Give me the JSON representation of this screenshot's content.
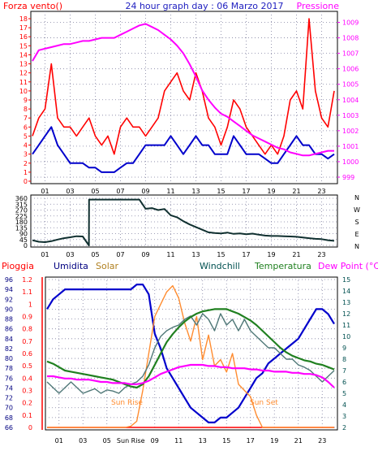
{
  "chart_data": [
    {
      "type": "line",
      "title": "24 hour graph day : 06 Marzo 2017",
      "left_label": "Forza vento()",
      "right_label": "Pressione",
      "x_ticks": [
        "01",
        "03",
        "05",
        "07",
        "09",
        "11",
        "13",
        "15",
        "17",
        "19",
        "21",
        "23"
      ],
      "x_domain": [
        0,
        24
      ],
      "y_left_ticks": [
        "0",
        "1",
        "2",
        "3",
        "4",
        "5",
        "6",
        "7",
        "8",
        "9",
        "10",
        "11",
        "12",
        "13",
        "14",
        "15",
        "16",
        "17",
        "18"
      ],
      "y_left_domain": [
        0,
        18
      ],
      "y_right_ticks": [
        "999",
        "1000",
        "1001",
        "1002",
        "1003",
        "1004",
        "1005",
        "1006",
        "1007",
        "1008",
        "1009"
      ],
      "y_right_domain": [
        999,
        1009.5
      ],
      "series": [
        {
          "color": "#ff0000",
          "axis": "left",
          "x": [
            0,
            0.5,
            1,
            1.5,
            2,
            2.5,
            3,
            3.5,
            4,
            4.5,
            5,
            5.5,
            6,
            6.5,
            7,
            7.5,
            8,
            8.5,
            9,
            9.5,
            10,
            10.5,
            11,
            11.5,
            12,
            12.5,
            13,
            13.5,
            14,
            14.5,
            15,
            15.5,
            16,
            16.5,
            17,
            17.5,
            18,
            18.5,
            19,
            19.5,
            20,
            20.5,
            21,
            21.5,
            22,
            22.5,
            23,
            23.5,
            24
          ],
          "values": [
            5,
            7,
            8,
            13,
            7,
            6,
            6,
            5,
            6,
            7,
            5,
            4,
            5,
            3,
            6,
            7,
            6,
            6,
            5,
            6,
            7,
            10,
            11,
            12,
            10,
            9,
            12,
            10,
            7,
            6,
            4,
            6,
            9,
            8,
            6,
            5,
            4,
            3,
            4,
            3,
            5,
            9,
            10,
            8,
            18,
            10,
            7,
            6,
            10
          ]
        },
        {
          "color": "#0000cc",
          "axis": "left",
          "x": [
            0,
            0.5,
            1,
            1.5,
            2,
            2.5,
            3,
            3.5,
            4,
            4.5,
            5,
            5.5,
            6,
            6.5,
            7,
            7.5,
            8,
            8.5,
            9,
            9.5,
            10,
            10.5,
            11,
            11.5,
            12,
            12.5,
            13,
            13.5,
            14,
            14.5,
            15,
            15.5,
            16,
            16.5,
            17,
            17.5,
            18,
            18.5,
            19,
            19.5,
            20,
            20.5,
            21,
            21.5,
            22,
            22.5,
            23,
            23.5,
            24
          ],
          "values": [
            3,
            4,
            5,
            6,
            4,
            3,
            2,
            2,
            2,
            1.5,
            1.5,
            1,
            1,
            1,
            1.5,
            2,
            2,
            3,
            4,
            4,
            4,
            4,
            5,
            4,
            3,
            4,
            5,
            4,
            4,
            3,
            3,
            3,
            5,
            4,
            3,
            3,
            3,
            2.5,
            2,
            2,
            3,
            4,
            5,
            4,
            4,
            3,
            3,
            2.5,
            3
          ]
        },
        {
          "color": "#ff00ff",
          "axis": "right",
          "x": [
            0,
            0.5,
            1,
            1.5,
            2,
            2.5,
            3,
            3.5,
            4,
            4.5,
            5,
            5.5,
            6,
            6.5,
            7,
            7.5,
            8,
            8.5,
            9,
            9.5,
            10,
            10.5,
            11,
            11.5,
            12,
            12.5,
            13,
            13.5,
            14,
            14.5,
            15,
            15.5,
            16,
            16.5,
            17,
            17.5,
            18,
            18.5,
            19,
            19.5,
            20,
            20.5,
            21,
            21.5,
            22,
            22.5,
            23,
            23.5,
            24
          ],
          "values": [
            1006.5,
            1007.2,
            1007.3,
            1007.4,
            1007.5,
            1007.6,
            1007.6,
            1007.7,
            1007.8,
            1007.8,
            1007.9,
            1008.0,
            1008.0,
            1008.0,
            1008.2,
            1008.4,
            1008.6,
            1008.8,
            1008.9,
            1008.7,
            1008.5,
            1008.2,
            1007.9,
            1007.5,
            1007.0,
            1006.3,
            1005.5,
            1004.6,
            1004.0,
            1003.5,
            1003.1,
            1002.9,
            1002.6,
            1002.3,
            1002.0,
            1001.7,
            1001.5,
            1001.3,
            1001.1,
            1000.9,
            1000.8,
            1000.6,
            1000.5,
            1000.4,
            1000.4,
            1000.5,
            1000.6,
            1000.7,
            1000.7
          ]
        }
      ]
    },
    {
      "type": "line",
      "direction_labels": [
        "N",
        "W",
        "S",
        "E",
        "N"
      ],
      "x_ticks": [
        "01",
        "03",
        "05",
        "07",
        "09",
        "11",
        "13",
        "15",
        "17",
        "19",
        "21",
        "23"
      ],
      "x_domain": [
        0,
        24
      ],
      "y_ticks": [
        "0",
        "45",
        "90",
        "135",
        "180",
        "225",
        "270",
        "315",
        "360"
      ],
      "y_domain": [
        0,
        360
      ],
      "series": [
        {
          "color": "#103030",
          "x": [
            0,
            0.5,
            1,
            1.5,
            2,
            2.5,
            3,
            3.5,
            4,
            4.49,
            4.5,
            5,
            5.5,
            6,
            6.5,
            7,
            7.5,
            8,
            8.5,
            9,
            9.5,
            10,
            10.5,
            11,
            11.5,
            12,
            12.5,
            13,
            13.5,
            14,
            14.5,
            15,
            15.5,
            16,
            16.5,
            17,
            17.5,
            18,
            18.5,
            19,
            19.5,
            20,
            20.5,
            21,
            21.5,
            22,
            22.5,
            23,
            23.5,
            24
          ],
          "values": [
            40,
            28,
            25,
            32,
            45,
            55,
            62,
            70,
            68,
            0,
            350,
            350,
            350,
            350,
            350,
            350,
            350,
            350,
            350,
            280,
            285,
            270,
            278,
            230,
            215,
            185,
            160,
            140,
            120,
            100,
            95,
            92,
            98,
            88,
            92,
            85,
            90,
            82,
            75,
            72,
            72,
            70,
            68,
            66,
            60,
            55,
            50,
            48,
            40,
            35
          ]
        }
      ]
    },
    {
      "type": "line",
      "header_labels": [
        "Pioggia",
        "Umidita",
        "Solar",
        "Windchill",
        "Temperatura",
        "Dew Point (°C)"
      ],
      "annotations": [
        "Sun Rise",
        "Sun Set"
      ],
      "x_ticks": [
        "01",
        "03",
        "05",
        "Sun Rise",
        "09",
        "11",
        "13",
        "15",
        "17",
        "19",
        "21",
        "23"
      ],
      "x_domain": [
        0,
        24
      ],
      "y_rain_ticks": [
        "0",
        "0.1",
        "0.2",
        "0.3",
        "0.4",
        "0.5",
        "0.6",
        "0.7",
        "0.8",
        "0.9",
        "1",
        "1.1",
        "1.2"
      ],
      "y_rain_domain": [
        0,
        1.2
      ],
      "y_humidity_ticks": [
        "66",
        "68",
        "70",
        "72",
        "74",
        "76",
        "78",
        "80",
        "82",
        "84",
        "86",
        "88",
        "90",
        "92",
        "94",
        "96"
      ],
      "y_humidity_domain": [
        66,
        96
      ],
      "y_temp_ticks": [
        "2",
        "3",
        "4",
        "5",
        "6",
        "7",
        "8",
        "9",
        "10",
        "11",
        "12",
        "13",
        "14",
        "15"
      ],
      "y_temp_domain": [
        2,
        15
      ],
      "series": [
        {
          "color": "#ff0000",
          "axis": "rain",
          "x": [
            0,
            24
          ],
          "values": [
            0,
            0
          ]
        },
        {
          "color": "#0000cc",
          "axis": "humidity",
          "x": [
            0,
            0.5,
            1,
            1.5,
            2,
            2.5,
            3,
            3.5,
            4,
            4.5,
            5,
            5.5,
            6,
            6.5,
            7,
            7.5,
            8,
            8.5,
            9,
            9.5,
            10,
            10.5,
            11,
            11.5,
            12,
            12.5,
            13,
            13.5,
            14,
            14.5,
            15,
            15.5,
            16,
            16.5,
            17,
            17.5,
            18,
            18.5,
            19,
            19.5,
            20,
            20.5,
            21,
            21.5,
            22,
            22.5,
            23,
            23.5,
            24
          ],
          "values": [
            90,
            92,
            93,
            94,
            94,
            94,
            94,
            94,
            94,
            94,
            94,
            94,
            94,
            94,
            94,
            95,
            95,
            93,
            85,
            82,
            78,
            76,
            74,
            72,
            70,
            69,
            68,
            67,
            67,
            68,
            68,
            69,
            70,
            72,
            74,
            76,
            77,
            79,
            80,
            81,
            82,
            83,
            84,
            86,
            88,
            90,
            90,
            89,
            87
          ]
        },
        {
          "color": "#ff8c30",
          "axis": "solar",
          "x": [
            0,
            5.5,
            6,
            6.5,
            7,
            7.5,
            8,
            8.5,
            9,
            9.5,
            10,
            10.5,
            11,
            11.5,
            12,
            12.5,
            13,
            13.5,
            14,
            14.5,
            15,
            15.5,
            16,
            16.5,
            17,
            17.5,
            18,
            24
          ],
          "values": [
            0,
            0,
            0,
            0,
            0.01,
            0.05,
            0.3,
            0.6,
            0.9,
            1.0,
            1.1,
            1.15,
            1.05,
            0.85,
            0.7,
            0.9,
            0.55,
            0.75,
            0.5,
            0.55,
            0.45,
            0.6,
            0.35,
            0.3,
            0.25,
            0.1,
            0,
            0
          ]
        },
        {
          "color": "#507878",
          "axis": "temp",
          "x": [
            0,
            0.5,
            1,
            1.5,
            2,
            2.5,
            3,
            3.5,
            4,
            4.5,
            5,
            5.5,
            6,
            6.5,
            7,
            7.5,
            8,
            8.5,
            9,
            9.5,
            10,
            10.5,
            11,
            11.5,
            12,
            12.5,
            13,
            13.5,
            14,
            14.5,
            15,
            15.5,
            16,
            16.5,
            17,
            17.5,
            18,
            18.5,
            19,
            19.5,
            20,
            20.5,
            21,
            21.5,
            22,
            22.5,
            23,
            23.5,
            24
          ],
          "values": [
            6,
            5.5,
            5,
            5.5,
            6,
            5.5,
            5,
            5.2,
            5.4,
            5,
            5.3,
            5.2,
            5,
            5.5,
            5.8,
            6,
            6.5,
            7.5,
            9,
            10,
            10.5,
            10.8,
            11,
            11.5,
            11.8,
            11,
            12,
            11.5,
            10.5,
            12,
            11,
            11.5,
            10.5,
            11.5,
            10.5,
            10,
            9.5,
            9,
            9,
            8.5,
            8,
            8,
            7.5,
            7.3,
            7,
            6.5,
            6,
            6.5,
            7
          ]
        },
        {
          "color": "#208020",
          "axis": "temp",
          "x": [
            0,
            0.5,
            1,
            1.5,
            2,
            2.5,
            3,
            3.5,
            4,
            4.5,
            5,
            5.5,
            6,
            6.5,
            7,
            7.5,
            8,
            8.5,
            9,
            9.5,
            10,
            10.5,
            11,
            11.5,
            12,
            12.5,
            13,
            13.5,
            14,
            14.5,
            15,
            15.5,
            16,
            16.5,
            17,
            17.5,
            18,
            18.5,
            19,
            19.5,
            20,
            20.5,
            21,
            21.5,
            22,
            22.5,
            23,
            23.5,
            24
          ],
          "values": [
            7.8,
            7.6,
            7.3,
            7.0,
            6.9,
            6.8,
            6.7,
            6.6,
            6.5,
            6.4,
            6.3,
            6.2,
            6.0,
            5.8,
            5.6,
            5.5,
            5.8,
            6.5,
            7.5,
            8.5,
            9.5,
            10.2,
            10.8,
            11.3,
            11.7,
            12.0,
            12.2,
            12.3,
            12.4,
            12.4,
            12.4,
            12.2,
            12.0,
            11.7,
            11.4,
            11.0,
            10.5,
            10.0,
            9.5,
            9.0,
            8.6,
            8.3,
            8.1,
            7.9,
            7.8,
            7.6,
            7.5,
            7.3,
            7.1
          ]
        },
        {
          "color": "#ff00ff",
          "axis": "temp",
          "x": [
            0,
            0.5,
            1,
            1.5,
            2,
            2.5,
            3,
            3.5,
            4,
            4.5,
            5,
            5.5,
            6,
            6.5,
            7,
            7.5,
            8,
            8.5,
            9,
            9.5,
            10,
            10.5,
            11,
            11.5,
            12,
            12.5,
            13,
            13.5,
            14,
            14.5,
            15,
            15.5,
            16,
            16.5,
            17,
            17.5,
            18,
            18.5,
            19,
            19.5,
            20,
            20.5,
            21,
            21.5,
            22,
            22.5,
            23,
            23.5,
            24
          ],
          "values": [
            6.5,
            6.5,
            6.4,
            6.3,
            6.3,
            6.2,
            6.2,
            6.2,
            6.1,
            6.0,
            6.0,
            5.9,
            5.9,
            5.9,
            5.8,
            5.8,
            5.9,
            6.1,
            6.4,
            6.7,
            6.9,
            7.1,
            7.3,
            7.4,
            7.5,
            7.5,
            7.5,
            7.4,
            7.4,
            7.3,
            7.3,
            7.2,
            7.2,
            7.2,
            7.1,
            7.1,
            7.0,
            7.0,
            6.9,
            6.9,
            6.9,
            6.8,
            6.8,
            6.7,
            6.7,
            6.6,
            6.4,
            6.0,
            5.5
          ]
        }
      ]
    }
  ],
  "colors": {
    "border": "#000000",
    "grid": "#8080a0",
    "wind_speed": "#ff0000",
    "wind_avg": "#0000cc",
    "pressure": "#ff00ff",
    "direction": "#103030",
    "title": "#2020c0",
    "rain": "#ff0000",
    "humidity": "#0000cc",
    "solar": "#ff8c30",
    "windchill": "#507878",
    "temperature": "#208020",
    "dewpoint": "#ff00ff",
    "solar_label": "#b08020",
    "humidity_label": "#000080",
    "temp_label": "#005050",
    "rain_axis": "#ff0000"
  }
}
